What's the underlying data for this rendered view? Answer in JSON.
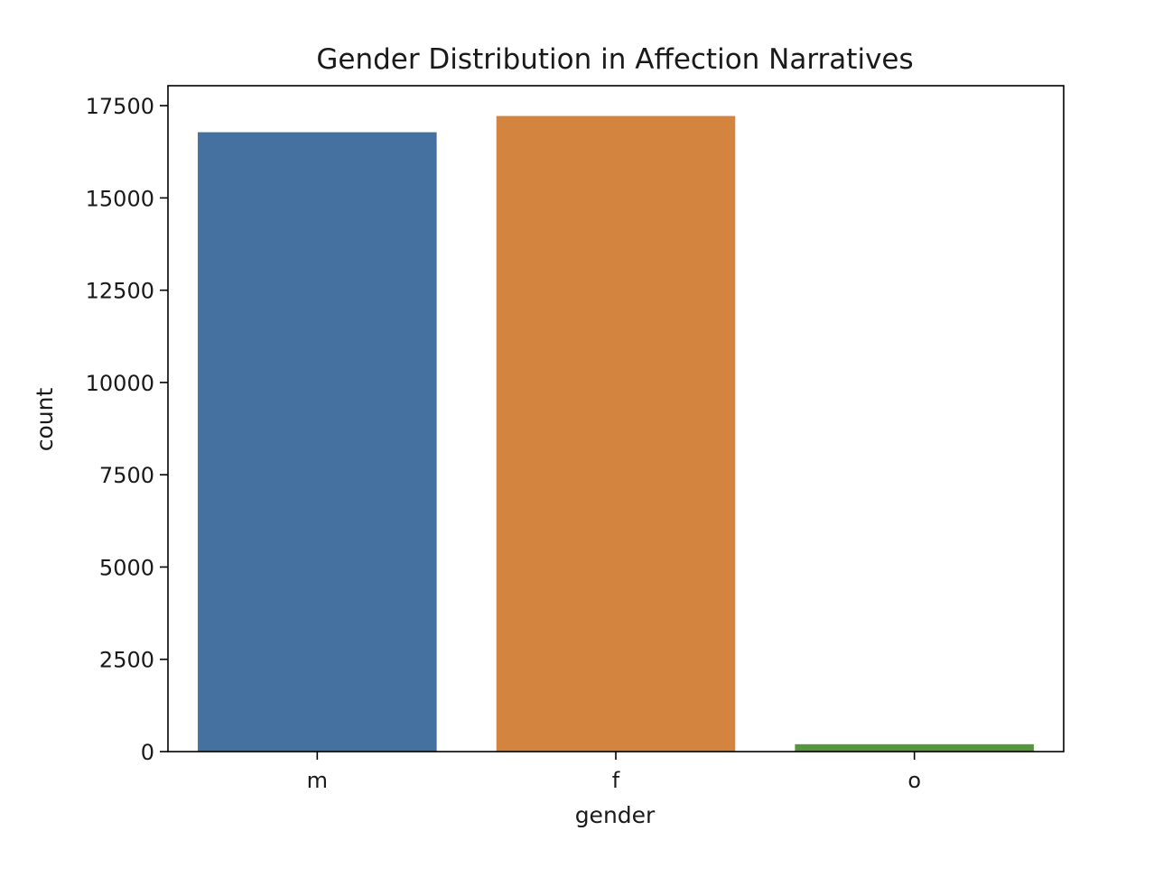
{
  "chart_data": {
    "type": "bar",
    "title": "Gender Distribution in Affection Narratives",
    "xlabel": "gender",
    "ylabel": "count",
    "categories": [
      "m",
      "f",
      "o"
    ],
    "values": [
      16780,
      17220,
      200
    ],
    "colors": [
      "#4471a0",
      "#d38540",
      "#55963f"
    ],
    "ylim": [
      0,
      18040
    ],
    "yticks": [
      0,
      2500,
      5000,
      7500,
      10000,
      12500,
      15000,
      17500
    ],
    "ytick_labels": [
      "0",
      "2500",
      "5000",
      "7500",
      "10000",
      "12500",
      "15000",
      "17500"
    ],
    "grid": false,
    "legend": "none"
  }
}
